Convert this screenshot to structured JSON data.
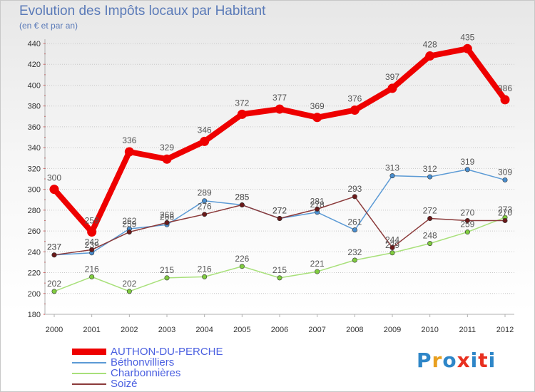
{
  "header": {
    "title": "Evolution des Impôts locaux par Habitant",
    "subtitle": "(en € et par an)"
  },
  "logo": {
    "text": "Proxiti",
    "colors": [
      "#2e86c8",
      "#e8a020",
      "#2e86c8",
      "#e83020",
      "#2e86c8",
      "#e83020",
      "#2e86c8"
    ]
  },
  "chart_data": {
    "type": "line",
    "title": "Evolution des Impôts locaux par Habitant",
    "subtitle": "(en € et par an)",
    "xlabel": "",
    "ylabel": "",
    "ylim": [
      180,
      440
    ],
    "yticks": [
      180,
      200,
      220,
      240,
      260,
      280,
      300,
      320,
      340,
      360,
      380,
      400,
      420,
      440
    ],
    "grid": "horizontal dotted",
    "legend_position": "bottom-left",
    "categories": [
      "2000",
      "2001",
      "2002",
      "2003",
      "2004",
      "2005",
      "2006",
      "2007",
      "2008",
      "2009",
      "2010",
      "2011",
      "2012"
    ],
    "series": [
      {
        "name": "Béthonvilliers",
        "color": "#5b9ad5",
        "point_color": "#4a8fd0",
        "values": [
          237,
          239,
          262,
          266,
          289,
          285,
          272,
          278,
          261,
          313,
          312,
          319,
          309
        ],
        "labels": [
          "237",
          "239",
          "262",
          "266",
          "289",
          "285",
          "272",
          "278",
          "261",
          "313",
          "312",
          "319",
          "309"
        ]
      },
      {
        "name": "Charbonnières",
        "color": "#a8e07a",
        "point_color": "#80cc40",
        "values": [
          202,
          216,
          202,
          215,
          216,
          226,
          215,
          221,
          232,
          239,
          248,
          259,
          273
        ],
        "labels": [
          "202",
          "216",
          "202",
          "215",
          "216",
          "226",
          "215",
          "221",
          "232",
          "239",
          "248",
          "259",
          "273"
        ]
      },
      {
        "name": "Soizé",
        "color": "#8b3a3a",
        "point_color": "#6b1a1a",
        "values": [
          237,
          242,
          259,
          268,
          276,
          285,
          272,
          281,
          293,
          244,
          272,
          270,
          270
        ],
        "labels": [
          "237",
          "242",
          "259",
          "268",
          "276",
          "285",
          "272",
          "281",
          "293",
          "244",
          "272",
          "270",
          "270"
        ]
      },
      {
        "name": "AUTHON-DU-PERCHE",
        "color": "#ee0000",
        "point_color": "#ee0000",
        "values": [
          300,
          259,
          336,
          329,
          346,
          372,
          377,
          369,
          376,
          397,
          428,
          435,
          386
        ],
        "labels": [
          "300",
          "259",
          "336",
          "329",
          "346",
          "372",
          "377",
          "369",
          "376",
          "397",
          "428",
          "435",
          "386"
        ]
      }
    ],
    "legend": [
      "AUTHON-DU-PERCHE",
      "Béthonvilliers",
      "Charbonnières",
      "Soizé"
    ]
  }
}
